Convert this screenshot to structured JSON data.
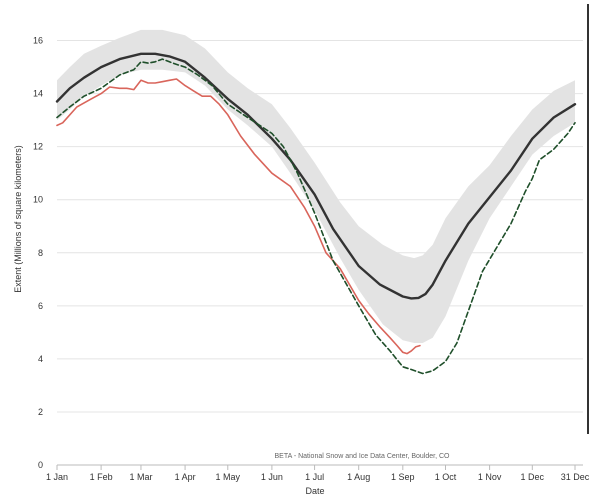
{
  "chart_data": {
    "type": "line",
    "xlabel": "Date",
    "ylabel": "Extent (Millions of square kilometers)",
    "credit": "BETA - National Snow and Ice Data Center, Boulder, CO",
    "ylim": [
      0,
      17
    ],
    "xlim": [
      1,
      365
    ],
    "grid": "horizontal",
    "y_ticks": [
      0,
      2,
      4,
      6,
      8,
      10,
      12,
      14,
      16
    ],
    "x_ticks": [
      {
        "label": "1 Jan",
        "day": 1
      },
      {
        "label": "1 Feb",
        "day": 32
      },
      {
        "label": "1 Mar",
        "day": 60
      },
      {
        "label": "1 Apr",
        "day": 91
      },
      {
        "label": "1 May",
        "day": 121
      },
      {
        "label": "1 Jun",
        "day": 152
      },
      {
        "label": "1 Jul",
        "day": 182
      },
      {
        "label": "1 Aug",
        "day": 213
      },
      {
        "label": "1 Sep",
        "day": 244
      },
      {
        "label": "1 Oct",
        "day": 274
      },
      {
        "label": "1 Nov",
        "day": 305
      },
      {
        "label": "1 Dec",
        "day": 335
      },
      {
        "label": "31 Dec",
        "day": 365
      }
    ],
    "colors": {
      "band": "#e3e3e3",
      "median": "#333333",
      "current": "#d9655b",
      "dashed": "#1f4f2a",
      "grid": "#e4e4e4",
      "axis": "#bbbbbb"
    },
    "series": [
      {
        "id": "range",
        "style": "band",
        "x": [
          1,
          10,
          20,
          32,
          45,
          60,
          75,
          91,
          105,
          121,
          135,
          152,
          165,
          182,
          200,
          213,
          230,
          244,
          252,
          258,
          265,
          274,
          290,
          305,
          320,
          335,
          350,
          365
        ],
        "lower": [
          13.0,
          13.4,
          13.9,
          14.3,
          14.7,
          14.9,
          14.9,
          14.8,
          14.3,
          13.4,
          12.8,
          12.0,
          11.0,
          9.6,
          7.8,
          6.6,
          5.3,
          4.7,
          4.6,
          4.6,
          4.8,
          5.6,
          7.7,
          9.3,
          10.5,
          11.7,
          12.4,
          12.9
        ],
        "upper": [
          14.5,
          15.0,
          15.5,
          15.8,
          16.1,
          16.4,
          16.4,
          16.2,
          15.7,
          14.8,
          14.2,
          13.6,
          12.7,
          11.4,
          9.9,
          9.0,
          8.3,
          7.9,
          7.8,
          7.9,
          8.3,
          9.3,
          10.5,
          11.3,
          12.4,
          13.4,
          14.1,
          14.5
        ]
      },
      {
        "id": "median",
        "style": "solid-dark",
        "x": [
          1,
          10,
          20,
          32,
          45,
          60,
          70,
          80,
          91,
          105,
          121,
          135,
          152,
          165,
          182,
          195,
          213,
          228,
          244,
          250,
          255,
          260,
          265,
          274,
          290,
          305,
          320,
          335,
          350,
          365
        ],
        "y": [
          13.7,
          14.2,
          14.6,
          15.0,
          15.3,
          15.5,
          15.5,
          15.4,
          15.2,
          14.6,
          13.8,
          13.2,
          12.3,
          11.5,
          10.2,
          8.9,
          7.5,
          6.8,
          6.35,
          6.28,
          6.3,
          6.45,
          6.8,
          7.7,
          9.1,
          10.1,
          11.1,
          12.3,
          13.1,
          13.6
        ]
      },
      {
        "id": "current-year",
        "style": "solid-red",
        "x": [
          1,
          5,
          15,
          25,
          32,
          38,
          45,
          50,
          55,
          60,
          65,
          70,
          75,
          80,
          85,
          91,
          97,
          103,
          109,
          115,
          121,
          130,
          140,
          152,
          165,
          175,
          182,
          190,
          200,
          213,
          220,
          228,
          235,
          240,
          244,
          247,
          250,
          253,
          256
        ],
        "y": [
          12.8,
          12.9,
          13.5,
          13.8,
          14.0,
          14.25,
          14.2,
          14.2,
          14.15,
          14.5,
          14.4,
          14.4,
          14.45,
          14.5,
          14.55,
          14.3,
          14.1,
          13.9,
          13.9,
          13.6,
          13.2,
          12.4,
          11.7,
          11.0,
          10.5,
          9.7,
          9.0,
          8.0,
          7.4,
          6.2,
          5.7,
          5.2,
          4.8,
          4.5,
          4.25,
          4.2,
          4.3,
          4.45,
          4.5
        ]
      },
      {
        "id": "dashed-year",
        "style": "dashed-green",
        "x": [
          1,
          10,
          20,
          32,
          45,
          55,
          60,
          65,
          70,
          75,
          80,
          85,
          91,
          100,
          110,
          121,
          135,
          152,
          160,
          170,
          182,
          195,
          213,
          225,
          235,
          244,
          250,
          258,
          265,
          274,
          282,
          290,
          300,
          310,
          320,
          330,
          335,
          340,
          350,
          360,
          365
        ],
        "y": [
          13.1,
          13.5,
          13.9,
          14.2,
          14.7,
          14.9,
          15.2,
          15.15,
          15.2,
          15.3,
          15.2,
          15.1,
          15.0,
          14.7,
          14.3,
          13.6,
          13.1,
          12.5,
          12.0,
          11.0,
          9.5,
          7.7,
          6.0,
          4.9,
          4.3,
          3.7,
          3.6,
          3.45,
          3.55,
          3.9,
          4.6,
          5.8,
          7.3,
          8.2,
          9.1,
          10.3,
          10.8,
          11.5,
          11.9,
          12.5,
          12.9
        ]
      }
    ]
  }
}
